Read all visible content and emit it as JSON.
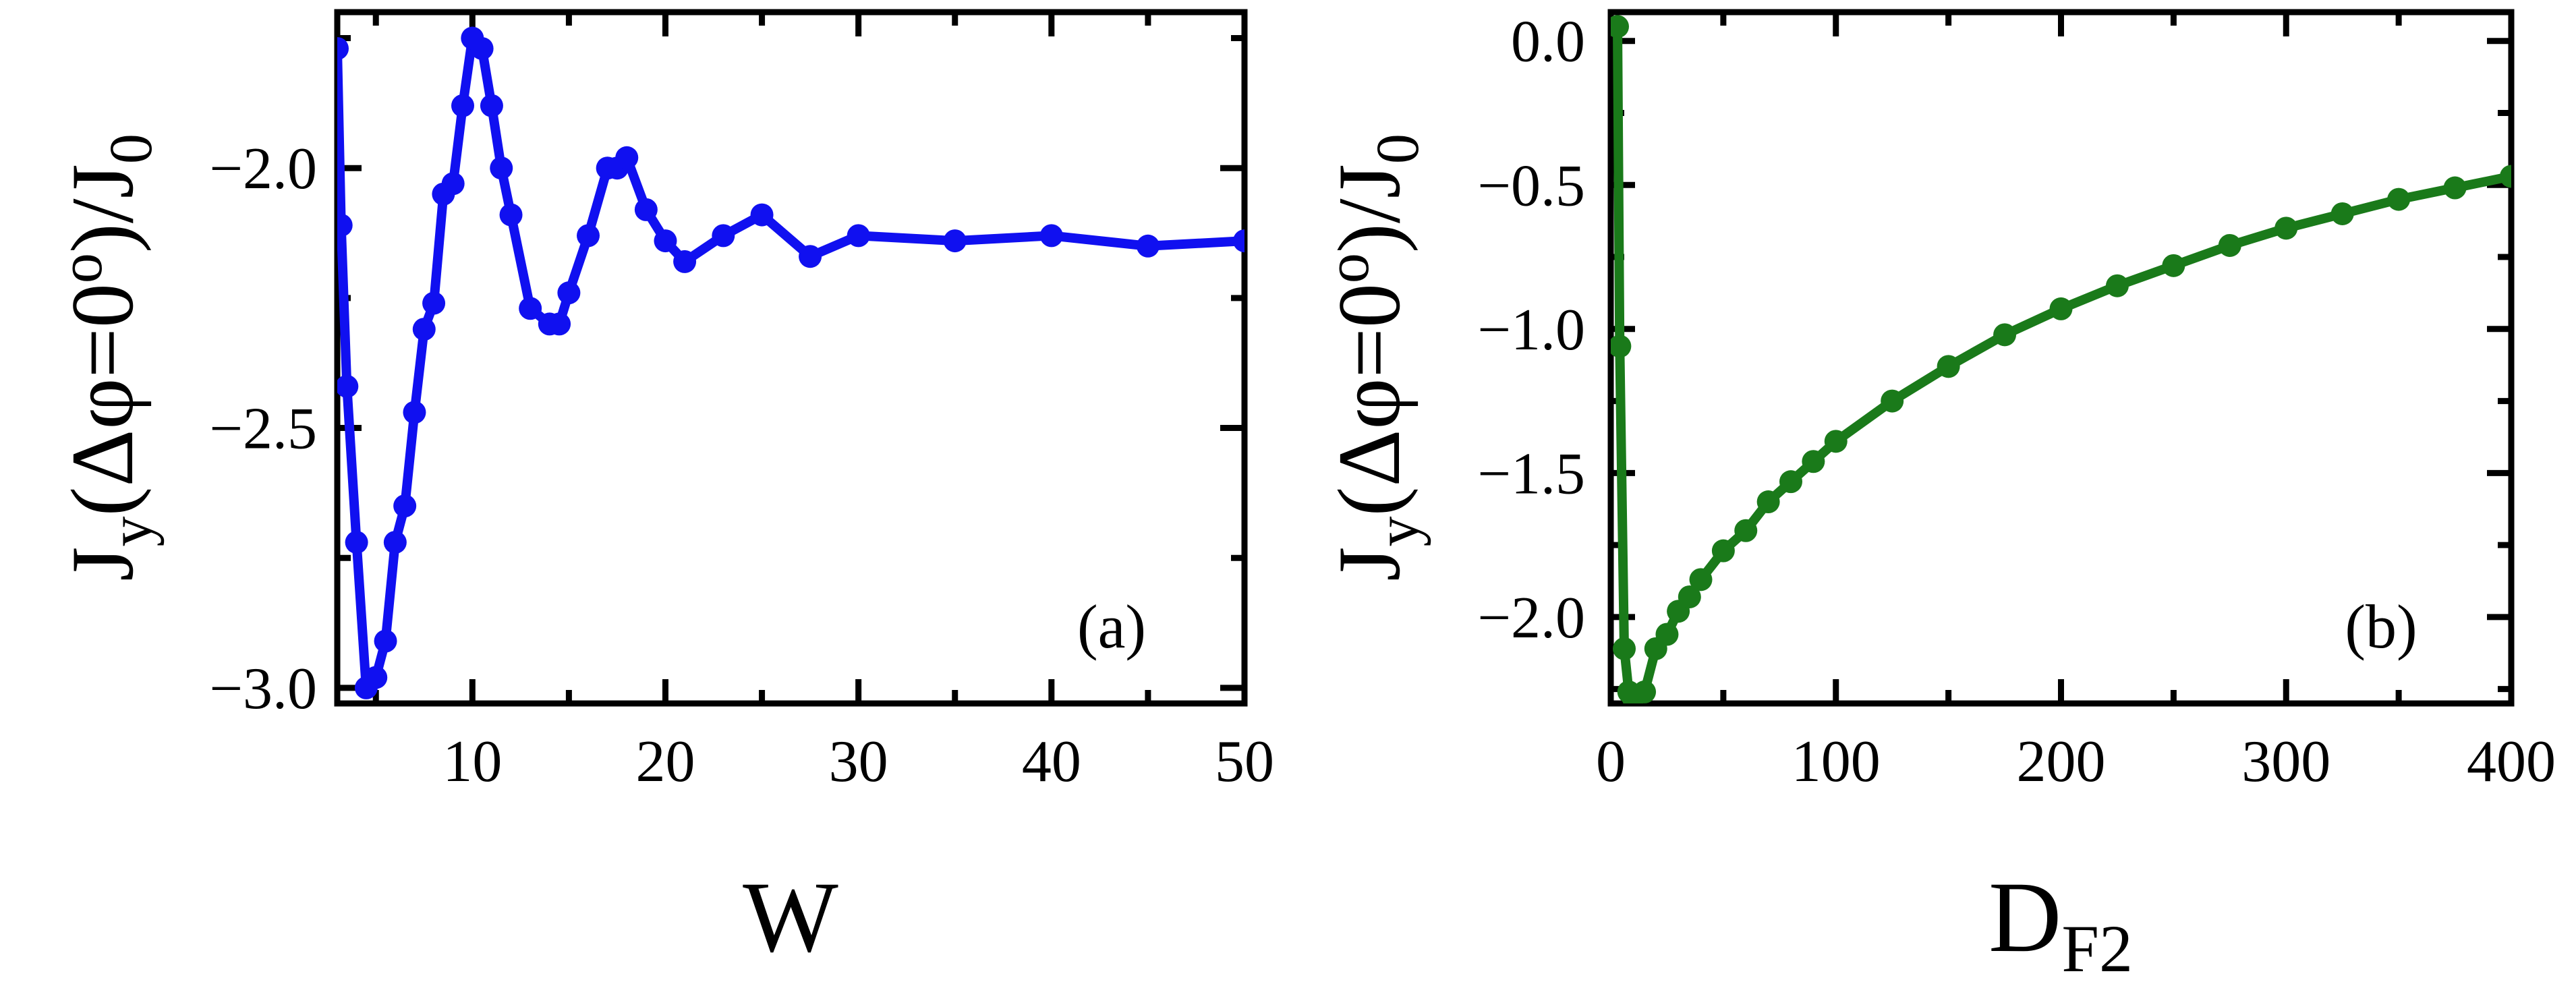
{
  "chart_data": [
    {
      "panel": "a",
      "type": "line",
      "panel_label": "(a)",
      "xlabel": "W",
      "ylabel": {
        "main": "J",
        "sub_y": "y",
        "body": "(Δφ=0",
        "sup": "o",
        "close": ")/J",
        "sub_0": "0"
      },
      "xlim": [
        3,
        50
      ],
      "ylim": [
        -3.03,
        -1.7
      ],
      "xticks": [
        10,
        20,
        30,
        40,
        50
      ],
      "yticks": [
        -2.0,
        -2.5,
        -3.0
      ],
      "xtick_labels": [
        "10",
        "20",
        "30",
        "40",
        "50"
      ],
      "ytick_labels": [
        "−2.0",
        "−2.5",
        "−3.0"
      ],
      "color": "#1010f0",
      "x": [
        3,
        3.2,
        3.5,
        4,
        4.5,
        5,
        5.5,
        6,
        6.5,
        7,
        7.5,
        8,
        8.5,
        9,
        9.5,
        10,
        10.5,
        11,
        11.5,
        12,
        13,
        14,
        14.5,
        15,
        16,
        17,
        17.5,
        18,
        19,
        20,
        21,
        23,
        25,
        27.5,
        30,
        35,
        40,
        45,
        50
      ],
      "y": [
        -1.77,
        -2.11,
        -2.42,
        -2.72,
        -3.0,
        -2.98,
        -2.91,
        -2.72,
        -2.65,
        -2.47,
        -2.31,
        -2.26,
        -2.05,
        -2.03,
        -1.88,
        -1.75,
        -1.77,
        -1.88,
        -2.0,
        -2.09,
        -2.27,
        -2.3,
        -2.3,
        -2.24,
        -2.13,
        -2.0,
        -2.0,
        -1.98,
        -2.08,
        -2.14,
        -2.18,
        -2.13,
        -2.09,
        -2.17,
        -2.13,
        -2.14,
        -2.13,
        -2.15,
        -2.14
      ]
    },
    {
      "panel": "b",
      "type": "line",
      "panel_label": "(b)",
      "xlabel": {
        "main": "D",
        "sub": "F2"
      },
      "ylabel": {
        "main": "J",
        "sub_y": "y",
        "body": "(Δφ=0",
        "sup": "o",
        "close": ")/J",
        "sub_0": "0"
      },
      "xlim": [
        0,
        400
      ],
      "ylim": [
        -2.3,
        0.1
      ],
      "xticks": [
        0,
        100,
        200,
        300,
        400
      ],
      "yticks": [
        0.0,
        -0.5,
        -1.0,
        -1.5,
        -2.0
      ],
      "xtick_labels": [
        "0",
        "100",
        "200",
        "300",
        "400"
      ],
      "ytick_labels": [
        "0.0",
        "−0.5",
        "−1.0",
        "−1.5",
        "−2.0"
      ],
      "color": "#1a7a1a",
      "x": [
        3,
        4,
        6,
        8,
        10,
        15,
        20,
        25,
        30,
        35,
        40,
        50,
        60,
        70,
        80,
        90,
        100,
        125,
        150,
        175,
        200,
        225,
        250,
        275,
        300,
        325,
        350,
        375,
        400
      ],
      "y": [
        0.05,
        -1.06,
        -2.11,
        -2.26,
        -2.28,
        -2.26,
        -2.11,
        -2.06,
        -1.98,
        -1.93,
        -1.87,
        -1.77,
        -1.7,
        -1.6,
        -1.53,
        -1.46,
        -1.39,
        -1.25,
        -1.13,
        -1.02,
        -0.93,
        -0.85,
        -0.78,
        -0.71,
        -0.65,
        -0.6,
        -0.55,
        -0.51,
        -0.47
      ]
    }
  ]
}
